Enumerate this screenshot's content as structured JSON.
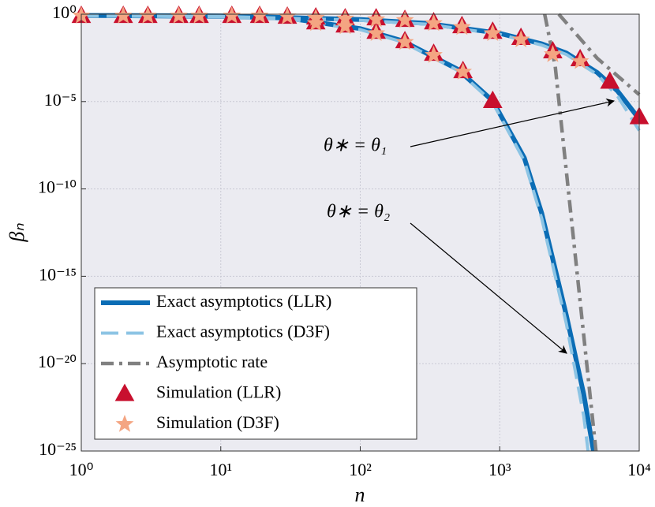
{
  "chart_data": {
    "type": "line",
    "xlabel": "n",
    "ylabel": "βₙ",
    "xscale": "log",
    "yscale": "log",
    "xlim": [
      1,
      10000
    ],
    "ylim": [
      1e-25,
      1
    ],
    "xticks": [
      {
        "value": 1,
        "label": "10⁰"
      },
      {
        "value": 10,
        "label": "10¹"
      },
      {
        "value": 100,
        "label": "10²"
      },
      {
        "value": 1000,
        "label": "10³"
      },
      {
        "value": 10000,
        "label": "10⁴"
      }
    ],
    "yticks": [
      {
        "value": 1e-25,
        "label": "10⁻²⁵"
      },
      {
        "value": 1e-20,
        "label": "10⁻²⁰"
      },
      {
        "value": 1e-15,
        "label": "10⁻¹⁵"
      },
      {
        "value": 1e-10,
        "label": "10⁻¹⁰"
      },
      {
        "value": 1e-05,
        "label": "10⁻⁵"
      },
      {
        "value": 1,
        "label": "10⁰"
      }
    ],
    "grid": true,
    "legend": "lower left",
    "annotations": [
      {
        "text": "θ∗ = θ₁"
      },
      {
        "text": "θ∗ = θ₂"
      }
    ],
    "series": [
      {
        "name": "Exact asymptotics (LLR)",
        "color": "#0b6db5",
        "line_style": "solid",
        "x": [
          1,
          10,
          100,
          300,
          1000,
          2000,
          3000,
          5000,
          7000,
          10000,
          null,
          1,
          10,
          30,
          100,
          200,
          500,
          890,
          1500,
          2000,
          3000,
          4000,
          4700
        ],
        "values": [
          0.85,
          0.8,
          0.5,
          0.3,
          0.08,
          0.02,
          0.006,
          0.00046,
          4e-05,
          1e-06,
          null,
          0.85,
          0.75,
          0.6,
          0.15,
          0.03,
          0.0007,
          1.1e-05,
          6e-09,
          4e-12,
          6e-18,
          1.8e-22,
          1e-25
        ]
      },
      {
        "name": "Exact asymptotics (D3F)",
        "color": "#8cc4e4",
        "line_style": "dashed",
        "x": [
          1,
          10,
          100,
          300,
          1000,
          2000,
          3000,
          5000,
          7000,
          10000,
          null,
          1,
          10,
          30,
          100,
          200,
          500,
          890,
          1500,
          2000,
          3000,
          4000,
          4300
        ],
        "values": [
          0.8,
          0.75,
          0.45,
          0.27,
          0.07,
          0.017,
          0.005,
          0.00035,
          2e-05,
          2.2e-07,
          null,
          0.8,
          0.7,
          0.55,
          0.13,
          0.026,
          0.0006,
          9e-06,
          4e-09,
          2e-12,
          2e-18,
          1e-23,
          1e-25
        ]
      },
      {
        "name": "Asymptotic rate",
        "color": "#808080",
        "line_style": "dashdot",
        "x": [
          2650,
          5000,
          10000,
          null,
          2100,
          2500,
          4900
        ],
        "values": [
          1,
          0.003,
          2.5e-05,
          null,
          1,
          0.001,
          1e-25
        ]
      },
      {
        "name": "Simulation (LLR)",
        "color": "#c8102e",
        "marker": "triangle",
        "x": [
          1,
          2,
          3,
          5,
          7,
          12,
          19,
          30,
          48,
          78,
          130,
          209,
          336,
          536,
          890,
          1420,
          2400,
          3770,
          6160,
          10000,
          48,
          78,
          130,
          209,
          336,
          545,
          890
        ],
        "values": [
          0.81,
          0.81,
          0.81,
          0.81,
          0.81,
          0.81,
          0.81,
          0.73,
          0.66,
          0.59,
          0.59,
          0.48,
          0.35,
          0.21,
          0.1,
          0.045,
          0.0076,
          0.0027,
          0.00014,
          1.3e-06,
          0.35,
          0.23,
          0.1,
          0.029,
          0.0055,
          0.00056,
          1.1e-05
        ]
      },
      {
        "name": "Simulation (D3F)",
        "color": "#f4a582",
        "marker": "star",
        "x": [
          1,
          2,
          3,
          5,
          7,
          12,
          19,
          30,
          48,
          78,
          130,
          209,
          336,
          536,
          890,
          1420,
          2400,
          3770,
          48,
          78,
          130,
          209,
          336,
          545
        ],
        "values": [
          0.81,
          0.81,
          0.81,
          0.81,
          0.81,
          0.81,
          0.81,
          0.73,
          0.6,
          0.55,
          0.5,
          0.45,
          0.3,
          0.18,
          0.08,
          0.035,
          0.005,
          0.002,
          0.3,
          0.2,
          0.08,
          0.025,
          0.0045,
          0.0005
        ]
      }
    ]
  }
}
